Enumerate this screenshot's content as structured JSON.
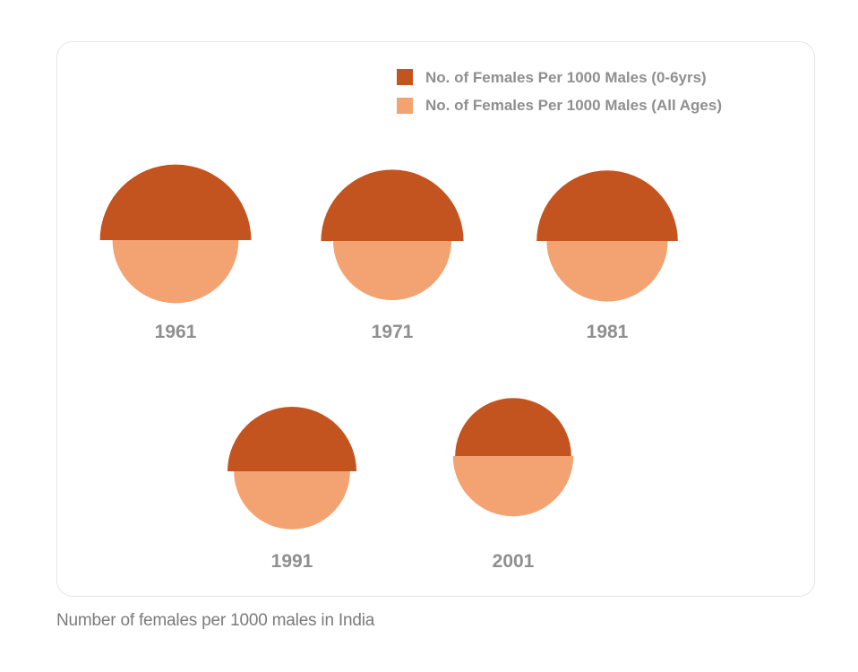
{
  "chart_data": {
    "type": "semicircle-comparison",
    "title": "",
    "caption": "Number of females per 1000 males in India",
    "categories": [
      "1961",
      "1971",
      "1981",
      "1991",
      "2001"
    ],
    "series": [
      {
        "name": "No. of Females Per 1000 Males (0-6yrs)",
        "color": "#c4541f",
        "values": [
          976,
          964,
          962,
          945,
          927
        ]
      },
      {
        "name": "No. of Females Per 1000 Males (All Ages)",
        "color": "#f2a371",
        "values": [
          941,
          930,
          934,
          927,
          933
        ]
      }
    ],
    "legend_position": "top-right"
  }
}
